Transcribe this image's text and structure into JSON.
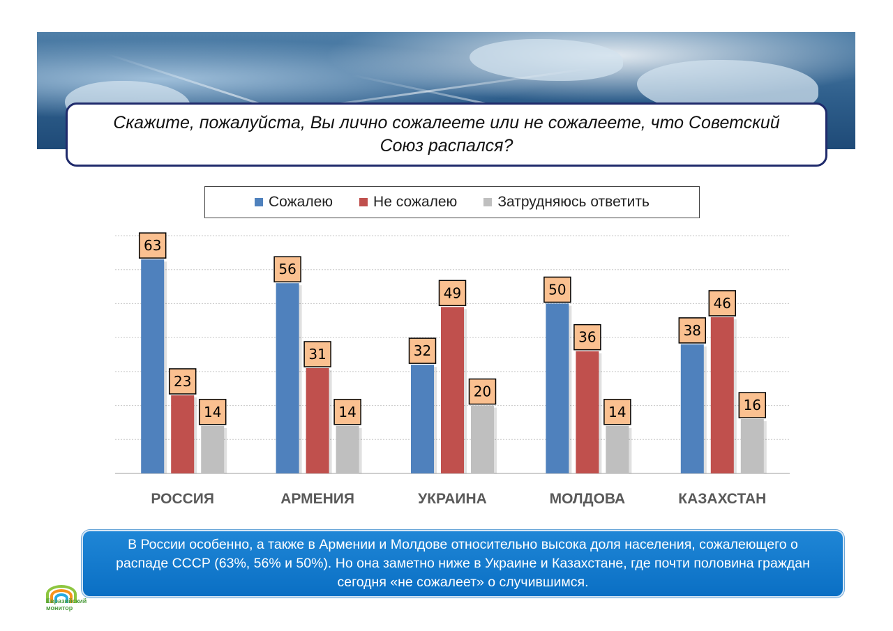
{
  "question": "Скажите, пожалуйста, Вы лично сожалеете или не сожалеете, что Советский Союз распался?",
  "legend": [
    {
      "label": "Сожалею",
      "color": "#4f81bd"
    },
    {
      "label": "Не сожалею",
      "color": "#c0504d"
    },
    {
      "label": "Затрудняюсь ответить",
      "color": "#bfbfbf"
    }
  ],
  "chart_data": {
    "type": "bar",
    "categories": [
      "РОССИЯ",
      "АРМЕНИЯ",
      "УКРАИНА",
      "МОЛДОВА",
      "КАЗАХСТАН"
    ],
    "series": [
      {
        "name": "Сожалею",
        "values": [
          63,
          56,
          32,
          50,
          38
        ],
        "color": "#4f81bd"
      },
      {
        "name": "Не сожалею",
        "values": [
          23,
          31,
          49,
          36,
          46
        ],
        "color": "#c0504d"
      },
      {
        "name": "Затрудняюсь ответить",
        "values": [
          14,
          14,
          20,
          14,
          16
        ],
        "color": "#bfbfbf"
      }
    ],
    "ylim": [
      0,
      70
    ],
    "grid": true,
    "legend_position": "top",
    "data_label_fill": "#fac090"
  },
  "note": "В России особенно, а также в Армении и Молдове относительно высока доля населения, сожалеющего о распаде СССР (63%, 56% и 50%). Но она заметно ниже в Украине и Казахстане, где почти половина граждан сегодня «не сожалеет» о случившимся.",
  "logo": {
    "line1": "Евразийский",
    "line2": "монитор"
  }
}
